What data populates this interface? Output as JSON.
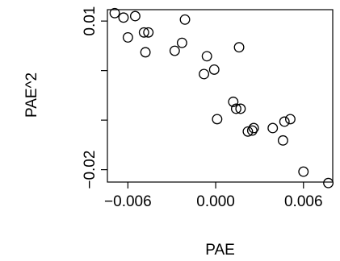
{
  "chart_data": {
    "type": "scatter",
    "xlabel": "PAE",
    "ylabel": "PAE^2",
    "xlim": [
      -0.0074,
      0.008
    ],
    "ylim": [
      -0.0225,
      0.0123
    ],
    "x_ticks": [
      -0.006,
      0.0,
      0.006
    ],
    "x_tick_labels": [
      "−0.006",
      "0.000",
      "0.006"
    ],
    "y_ticks": [
      -0.02,
      -0.01,
      0.0,
      0.01
    ],
    "y_tick_labels": [
      "−0.02",
      "",
      "",
      "0.01"
    ],
    "grid": false,
    "legend": "none",
    "series": [
      {
        "points": [
          {
            "x": -0.0069,
            "y": 0.0116
          },
          {
            "x": -0.0063,
            "y": 0.0107
          },
          {
            "x": -0.006,
            "y": 0.0067
          },
          {
            "x": -0.0055,
            "y": 0.011
          },
          {
            "x": -0.0049,
            "y": 0.0077
          },
          {
            "x": -0.0046,
            "y": 0.0077
          },
          {
            "x": -0.0048,
            "y": 0.0037
          },
          {
            "x": -0.0028,
            "y": 0.004
          },
          {
            "x": -0.0023,
            "y": 0.0056
          },
          {
            "x": -0.0021,
            "y": 0.0103
          },
          {
            "x": -0.0006,
            "y": 0.0029
          },
          {
            "x": 0.0016,
            "y": 0.0047
          },
          {
            "x": -0.0008,
            "y": -0.0007
          },
          {
            "x": -0.0001,
            "y": 0.0002
          },
          {
            "x": 0.0001,
            "y": -0.0098
          },
          {
            "x": 0.0012,
            "y": -0.0063
          },
          {
            "x": 0.0014,
            "y": -0.0077
          },
          {
            "x": 0.0017,
            "y": -0.0077
          },
          {
            "x": 0.0022,
            "y": -0.0123
          },
          {
            "x": 0.0025,
            "y": -0.0121
          },
          {
            "x": 0.0026,
            "y": -0.0116
          },
          {
            "x": 0.0039,
            "y": -0.0116
          },
          {
            "x": 0.0047,
            "y": -0.0103
          },
          {
            "x": 0.0051,
            "y": -0.0098
          },
          {
            "x": 0.0046,
            "y": -0.0141
          },
          {
            "x": 0.006,
            "y": -0.0204
          },
          {
            "x": 0.0077,
            "y": -0.0227
          }
        ]
      }
    ]
  }
}
